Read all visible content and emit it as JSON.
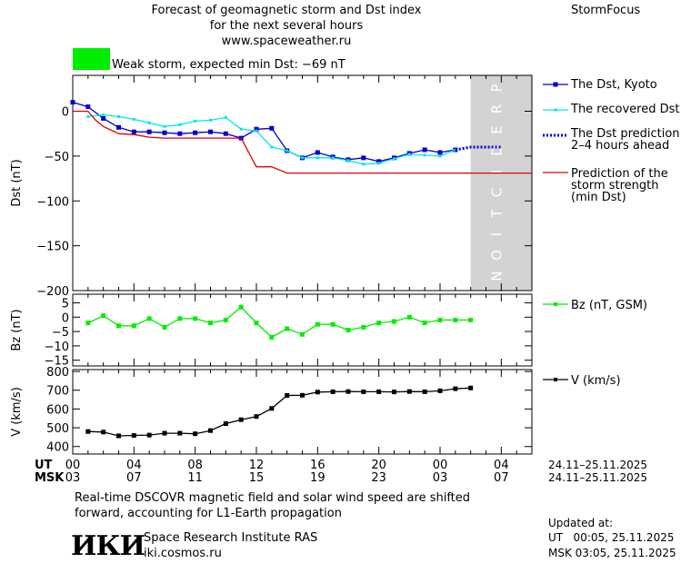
{
  "header": {
    "title_line1": "Forecast of geomagnetic storm and Dst index",
    "title_line2": "for the next several hours",
    "title_line3": "www.spaceweather.ru",
    "brand": "StormFocus"
  },
  "status": {
    "color": "#00ee00",
    "text": "Weak storm, expected min Dst: −69 nT"
  },
  "colors": {
    "dst_kyoto": "#0000cc",
    "dst_recovered": "#00e8e8",
    "dst_prediction": "#0000cc",
    "storm_strength": "#dd0000",
    "bz": "#00ee00",
    "v": "#000000",
    "prediction_band": "#d3d3d3"
  },
  "prediction_label": "PREDICTION",
  "chart_data": [
    {
      "type": "line",
      "ylabel": "Dst (nT)",
      "ylim": [
        -200,
        40
      ],
      "yticks": [
        0,
        -50,
        -100,
        -150,
        -200
      ],
      "prediction_region_hours": [
        26,
        30
      ],
      "series": [
        {
          "name": "The Dst, Kyoto",
          "marker": "square",
          "x": [
            0,
            1,
            2,
            3,
            4,
            5,
            6,
            7,
            8,
            9,
            10,
            11,
            12,
            13,
            14,
            15,
            16,
            17,
            18,
            19,
            20,
            21,
            22,
            23,
            24,
            25
          ],
          "values": [
            10,
            5,
            -8,
            -18,
            -23,
            -23,
            -24,
            -25,
            -24,
            -23,
            -25,
            -30,
            -20,
            -19,
            -44,
            -52,
            -46,
            -51,
            -54,
            -52,
            -56,
            -52,
            -47,
            -43,
            -46,
            -43
          ]
        },
        {
          "name": "The recovered Dst",
          "marker": "small",
          "x": [
            1,
            2,
            3,
            4,
            5,
            6,
            7,
            8,
            9,
            10,
            11,
            12,
            13,
            14,
            15,
            16,
            17,
            18,
            19,
            20,
            21,
            22,
            23,
            24,
            25
          ],
          "values": [
            -6,
            -4,
            -6,
            -9,
            -13,
            -17,
            -15,
            -11,
            -10,
            -7,
            -20,
            -22,
            -40,
            -44,
            -52,
            -52,
            -52,
            -55,
            -59,
            -58,
            -53,
            -48,
            -49,
            -50,
            -43
          ]
        },
        {
          "name": "The Dst prediction\n2–4 hours ahead",
          "style": "dotted",
          "x": [
            25,
            26,
            27,
            28
          ],
          "values": [
            -43,
            -40,
            -40,
            -40
          ]
        },
        {
          "name": "Prediction of the\nstorm strength\n(min Dst)",
          "style": "step",
          "x": [
            0,
            1,
            1.5,
            2,
            3,
            4,
            5,
            6,
            7,
            8,
            9,
            10,
            11,
            12,
            13,
            14,
            15,
            30
          ],
          "values": [
            0,
            0,
            -10,
            -17,
            -25,
            -26,
            -29,
            -30,
            -30,
            -30,
            -30,
            -30,
            -30,
            -62,
            -62,
            -69,
            -69,
            -69
          ]
        }
      ]
    },
    {
      "type": "line",
      "ylabel": "Bz (nT)",
      "ylim": [
        -17,
        8
      ],
      "yticks": [
        5,
        0,
        -5,
        -10,
        -15
      ],
      "series": [
        {
          "name": "Bz (nT, GSM)",
          "x": [
            1,
            2,
            3,
            4,
            5,
            6,
            7,
            8,
            9,
            10,
            11,
            12,
            13,
            14,
            15,
            16,
            17,
            18,
            19,
            20,
            21,
            22,
            23,
            24,
            25,
            26
          ],
          "values": [
            -2,
            0.5,
            -3,
            -3,
            -0.5,
            -3.5,
            -0.5,
            -0.5,
            -2,
            -1,
            3.5,
            -2,
            -7,
            -4,
            -6,
            -2.5,
            -2.5,
            -4.5,
            -3.5,
            -2,
            -1.5,
            0,
            -2,
            -1,
            -1,
            -1
          ]
        }
      ]
    },
    {
      "type": "line",
      "ylabel": "V (km/s)",
      "ylim": [
        360,
        810
      ],
      "yticks": [
        800,
        700,
        600,
        500,
        400
      ],
      "series": [
        {
          "name": "V (km/s)",
          "x": [
            1,
            2,
            3,
            4,
            5,
            6,
            7,
            8,
            9,
            10,
            11,
            12,
            13,
            14,
            15,
            16,
            17,
            18,
            19,
            20,
            21,
            22,
            23,
            24,
            25,
            26
          ],
          "values": [
            480,
            477,
            457,
            459,
            461,
            471,
            471,
            468,
            485,
            522,
            543,
            560,
            603,
            672,
            673,
            690,
            692,
            693,
            692,
            692,
            691,
            693,
            692,
            697,
            708,
            712
          ]
        }
      ]
    }
  ],
  "axes": {
    "ut_label": "UT",
    "msk_label": "MSK",
    "ut_ticks": [
      "00",
      "04",
      "08",
      "12",
      "16",
      "20",
      "00",
      "04"
    ],
    "msk_ticks": [
      "03",
      "07",
      "11",
      "15",
      "19",
      "23",
      "03",
      "07"
    ],
    "date_range_ut": "24.11–25.11.2025",
    "date_range_msk": "24.11–25.11.2025"
  },
  "footer": {
    "note_line1": "Real-time DSCOVR magnetic field and solar wind speed are shifted",
    "note_line2": "forward, accounting for L1-Earth propagation",
    "logo_text": "ИКИ",
    "institute": "Space Research Institute RAS",
    "site": "iki.cosmos.ru",
    "updated_label": "Updated at:",
    "updated_ut": "UT   00:05, 25.11.2025",
    "updated_msk": "MSK 03:05, 25.11.2025"
  }
}
